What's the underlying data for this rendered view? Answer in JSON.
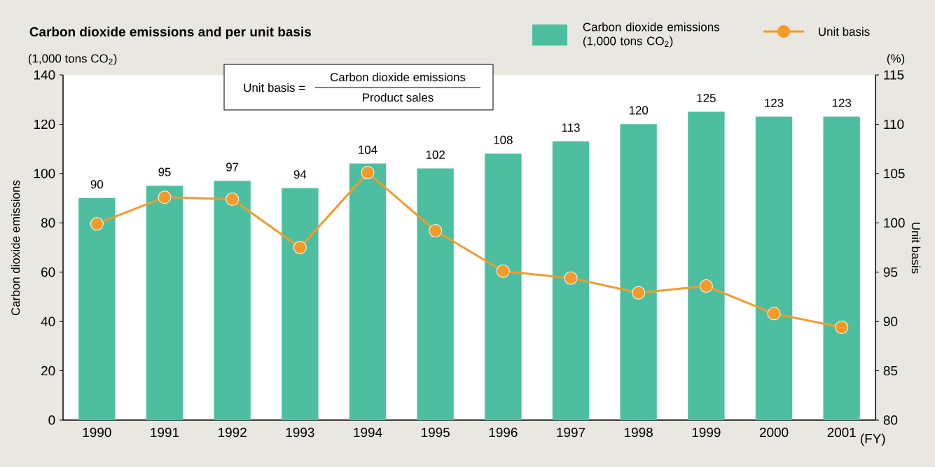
{
  "chart_data": {
    "type": "bar",
    "title": "Carbon dioxide emissions and per unit basis",
    "categories": [
      "1990",
      "1991",
      "1992",
      "1993",
      "1994",
      "1995",
      "1996",
      "1997",
      "1998",
      "1999",
      "2000",
      "2001"
    ],
    "series": [
      {
        "name": "Carbon dioxide emissions (1,000 tons CO$_{2}$)",
        "color": "#4dbfa0",
        "values": [
          90,
          95,
          97,
          94,
          104,
          102,
          108,
          113,
          120,
          125,
          123,
          123
        ],
        "data_labels": true
      },
      {
        "name": "Unit basis",
        "type": "line",
        "axis": "y2",
        "color": "#f39a2b",
        "marker": "circle",
        "line_style": "solid",
        "values": [
          99.9,
          102.6,
          102.4,
          97.5,
          105.1,
          99.2,
          95.1,
          94.4,
          92.9,
          93.6,
          90.8,
          89.4
        ]
      }
    ],
    "ylabel": "Carbon dioxide emissions",
    "y2label": "Unit basis",
    "ylim": [
      0,
      140
    ],
    "yticks": [
      0,
      20,
      40,
      60,
      80,
      100,
      120,
      140
    ],
    "y2lim": [
      80,
      115
    ],
    "y2ticks": [
      80,
      85,
      90,
      95,
      100,
      105,
      110,
      115
    ],
    "legend": "top right",
    "grid": false,
    "annotations": [
      "(1,000 tons CO$_{2}$)",
      "(%)",
      "(FY)",
      "Unit basis =",
      "Carbon dioxide emissions",
      "Product sales"
    ]
  }
}
